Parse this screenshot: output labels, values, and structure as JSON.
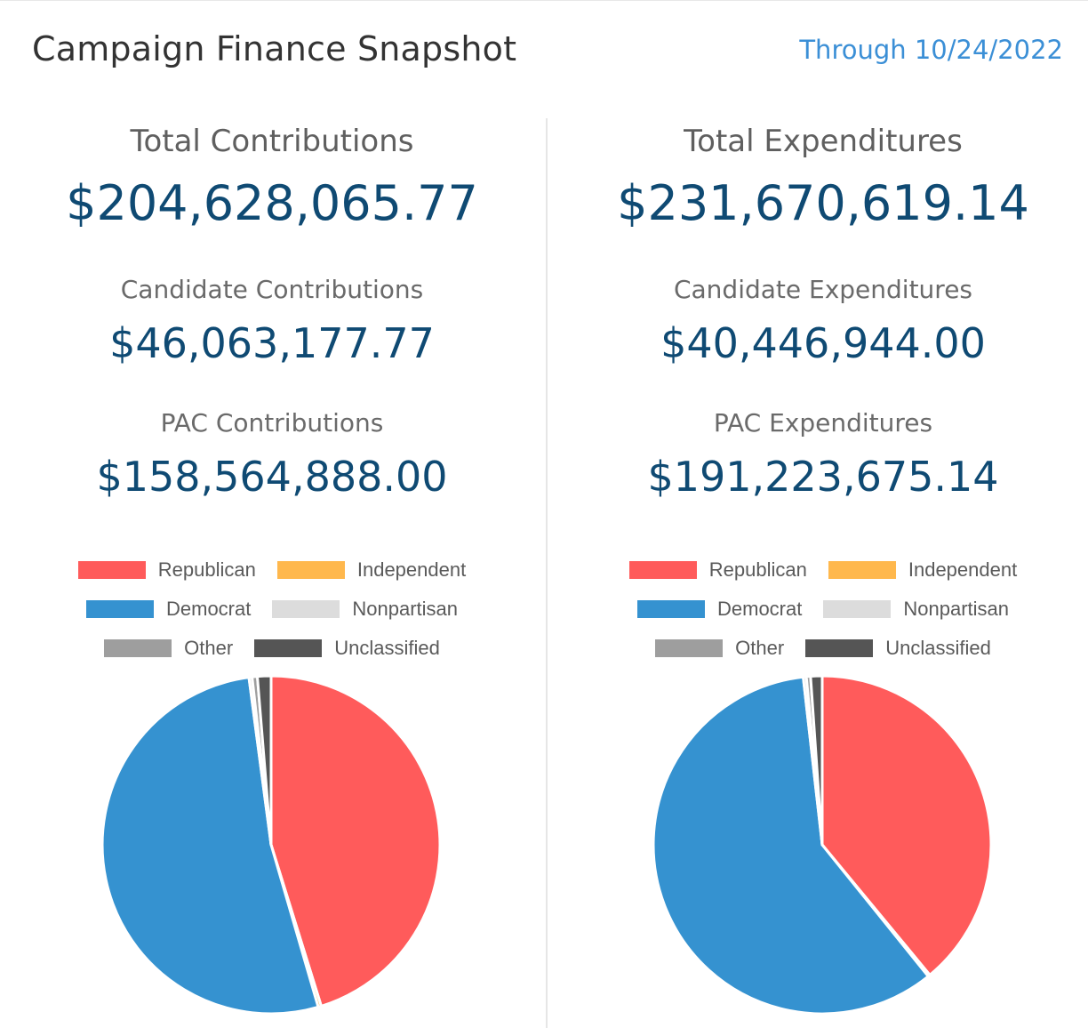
{
  "header": {
    "title": "Campaign Finance Snapshot",
    "through": "Through 10/24/2022"
  },
  "colors": {
    "Republican": "#ff5b5b",
    "Independent": "#ffb84d",
    "Democrat": "#3592d0",
    "Nonpartisan": "#dcdcdc",
    "Other": "#9e9e9e",
    "Unclassified": "#555555"
  },
  "contributions": {
    "total_label": "Total Contributions",
    "total_value": "$204,628,065.77",
    "candidate_label": "Candidate Contributions",
    "candidate_value": "$46,063,177.77",
    "pac_label": "PAC Contributions",
    "pac_value": "$158,564,888.00"
  },
  "expenditures": {
    "total_label": "Total Expenditures",
    "total_value": "$231,670,619.14",
    "candidate_label": "Candidate Expenditures",
    "candidate_value": "$40,446,944.00",
    "pac_label": "PAC Expenditures",
    "pac_value": "$191,223,675.14"
  },
  "legend": [
    [
      "Republican",
      "Independent"
    ],
    [
      "Democrat",
      "Nonpartisan"
    ],
    [
      "Other",
      "Unclassified"
    ]
  ],
  "chart_data": [
    {
      "type": "pie",
      "title": "",
      "legend": "top",
      "categories": [
        "Republican",
        "Independent",
        "Democrat",
        "Nonpartisan",
        "Other",
        "Unclassified"
      ],
      "values": [
        45.2,
        0.3,
        52.4,
        0.3,
        0.5,
        1.3
      ]
    },
    {
      "type": "pie",
      "title": "",
      "legend": "top",
      "categories": [
        "Republican",
        "Independent",
        "Democrat",
        "Nonpartisan",
        "Other",
        "Unclassified"
      ],
      "values": [
        39.0,
        0.2,
        59.0,
        0.3,
        0.4,
        1.1
      ]
    }
  ]
}
